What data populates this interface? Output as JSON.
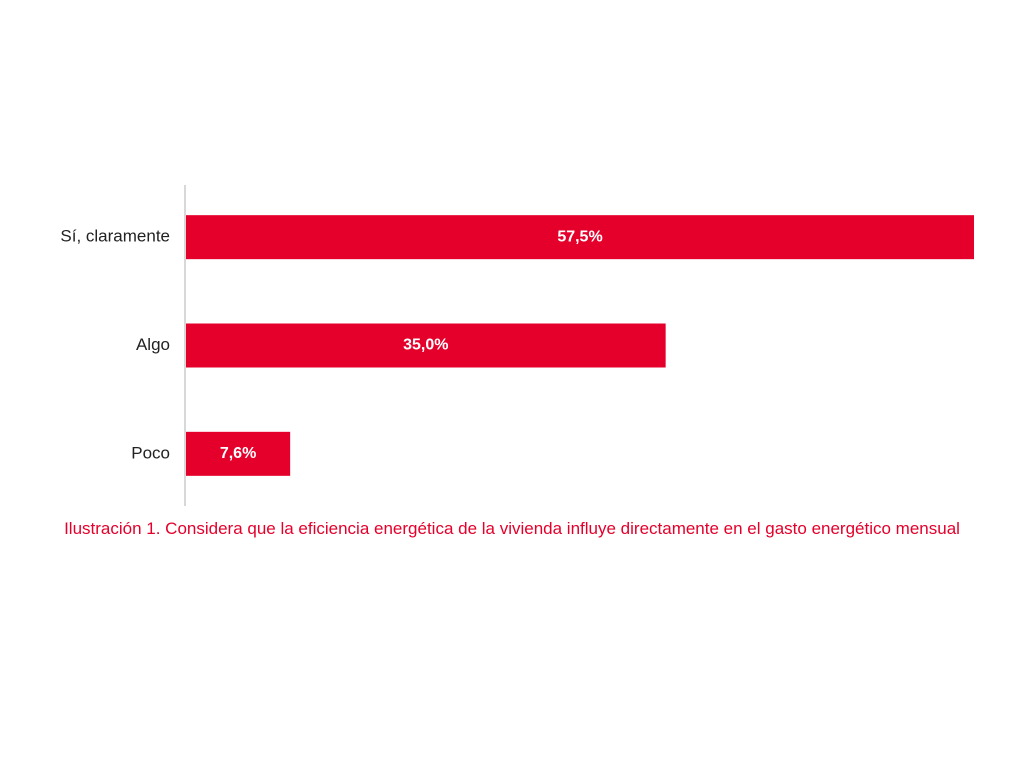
{
  "chart_data": {
    "type": "bar",
    "orientation": "horizontal",
    "title": "Ilustración 1. Considera que la eficiencia energética de la vivienda influye directamente en el gasto energético mensual",
    "categories": [
      "Sí, claramente",
      "Algo",
      "Poco"
    ],
    "values": [
      57.5,
      35.0,
      7.6
    ],
    "value_labels": [
      "57,5%",
      "35,0%",
      "7,6%"
    ],
    "color": "#e4002b",
    "xlim": [
      0,
      57.5
    ]
  }
}
